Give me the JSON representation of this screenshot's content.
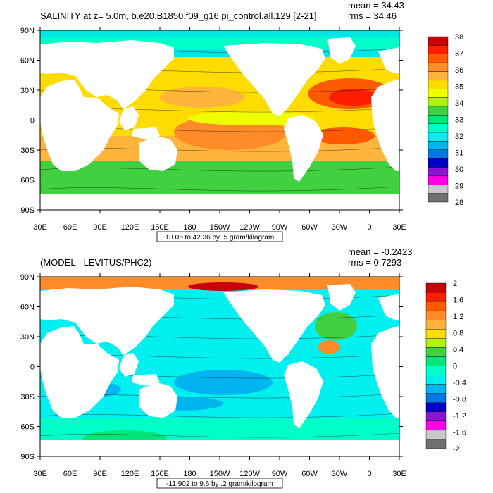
{
  "panels": [
    {
      "id": "top",
      "title": "SALINITY at z=   5.0m, b.e20.B1850.f09_g16.pi_control.all.129 [2-21]",
      "stats": [
        "mean = 34.43",
        "rms = 34.46"
      ],
      "lat_labels": [
        "90N",
        "60N",
        "30N",
        "0",
        "30S",
        "60S",
        "90S"
      ],
      "lon_labels": [
        "30E",
        "60E",
        "90E",
        "120E",
        "150E",
        "180",
        "150W",
        "120W",
        "90W",
        "60W",
        "30W",
        "0",
        "30E"
      ],
      "contour_info": "18.05 to 42.36 by .5 gram/kilogram",
      "colorbar": {
        "labels": [
          "38",
          "37",
          "36",
          "35",
          "34",
          "33",
          "32",
          "31",
          "30",
          "29",
          "28"
        ],
        "colors": [
          "#c8000a",
          "#ff1e00",
          "#ff5a00",
          "#ff8c28",
          "#ffb43c",
          "#ffdc00",
          "#f0ff00",
          "#b4f014",
          "#40d040",
          "#00e678",
          "#00ffc8",
          "#00f0f0",
          "#00b4f0",
          "#0078e6",
          "#0000c8",
          "#8c14d2",
          "#ff00e6",
          "#c8c8c8",
          "#707070"
        ]
      }
    },
    {
      "id": "bottom",
      "title": "(MODEL - LEVITUS/PHC2)",
      "stats": [
        "mean = -0.2423",
        "rms = 0.7293"
      ],
      "lat_labels": [
        "90N",
        "60N",
        "30N",
        "0",
        "30S",
        "60S",
        "90S"
      ],
      "lon_labels": [
        "30E",
        "60E",
        "90E",
        "120E",
        "150E",
        "180",
        "150W",
        "120W",
        "90W",
        "60W",
        "30W",
        "0",
        "30E"
      ],
      "contour_info": "-11.902 to 9.6 by .2 gram/kilogram",
      "colorbar": {
        "labels": [
          "2",
          "1.6",
          "1.2",
          "0.8",
          "0.4",
          "0",
          "-0.4",
          "-0.8",
          "-1.2",
          "-1.6",
          "-2"
        ],
        "colors": [
          "#c8000a",
          "#ff1e00",
          "#ff5a00",
          "#ff8c28",
          "#ffb43c",
          "#ffdc00",
          "#b4f014",
          "#40d040",
          "#00e678",
          "#00ffc8",
          "#00f0f0",
          "#00b4f0",
          "#0078e6",
          "#0000c8",
          "#8c14d2",
          "#ff00e6",
          "#c8c8c8",
          "#707070"
        ]
      }
    }
  ]
}
